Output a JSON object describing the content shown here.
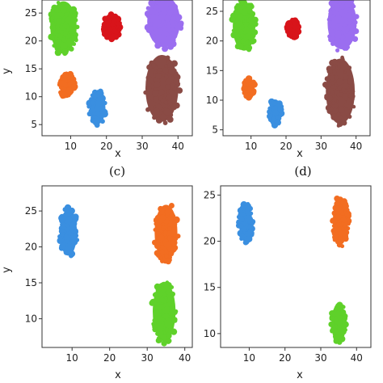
{
  "captions": [
    "(c)",
    "(d)"
  ],
  "colors": {
    "green": "#5fd12a",
    "red": "#d8141a",
    "purple": "#9b6ef0",
    "orange": "#f26d21",
    "blue": "#3a8fe0",
    "brown": "#8a4b45"
  },
  "chart_data": [
    {
      "type": "scatter",
      "xlabel": "x",
      "ylabel": "y",
      "xlim": [
        2,
        44
      ],
      "ylim": [
        3,
        28.5
      ],
      "xticks": [
        "10",
        "20",
        "30",
        "40"
      ],
      "yticks": [
        "5",
        "10",
        "15",
        "20",
        "25"
      ],
      "series": [
        {
          "color": "#5fd12a",
          "cx": 8,
          "cy": 22.5,
          "rx": 4,
          "ry": 5
        },
        {
          "color": "#d8141a",
          "cx": 21.5,
          "cy": 22.5,
          "rx": 2.5,
          "ry": 2.3
        },
        {
          "color": "#9b6ef0",
          "cx": 36,
          "cy": 23.5,
          "rx": 5,
          "ry": 5
        },
        {
          "color": "#f26d21",
          "cx": 9,
          "cy": 12,
          "rx": 2.2,
          "ry": 2.3
        },
        {
          "color": "#3a8fe0",
          "cx": 17.5,
          "cy": 8,
          "rx": 2.4,
          "ry": 3.2
        },
        {
          "color": "#8a4b45",
          "cx": 35.5,
          "cy": 11.5,
          "rx": 5,
          "ry": 6.5
        }
      ]
    },
    {
      "type": "scatter",
      "xlabel": "x",
      "ylabel": "",
      "xlim": [
        2,
        44
      ],
      "ylim": [
        4,
        28
      ],
      "xticks": [
        "10",
        "20",
        "30",
        "40"
      ],
      "yticks": [
        "5",
        "10",
        "15",
        "20",
        "25"
      ],
      "series": [
        {
          "color": "#5fd12a",
          "cx": 8,
          "cy": 22.5,
          "rx": 3.5,
          "ry": 4.5
        },
        {
          "color": "#d8141a",
          "cx": 22,
          "cy": 22,
          "rx": 1.7,
          "ry": 1.6
        },
        {
          "color": "#9b6ef0",
          "cx": 36,
          "cy": 23,
          "rx": 4.5,
          "ry": 4.8
        },
        {
          "color": "#f26d21",
          "cx": 9.5,
          "cy": 12,
          "rx": 1.6,
          "ry": 1.8
        },
        {
          "color": "#3a8fe0",
          "cx": 17,
          "cy": 8,
          "rx": 1.8,
          "ry": 2.3
        },
        {
          "color": "#8a4b45",
          "cx": 35.5,
          "cy": 11.5,
          "rx": 4.5,
          "ry": 6
        }
      ]
    },
    {
      "type": "scatter",
      "xlabel": "x",
      "ylabel": "y",
      "xlim": [
        2,
        42
      ],
      "ylim": [
        6,
        28.5
      ],
      "xticks": [
        "10",
        "20",
        "30",
        "40"
      ],
      "yticks": [
        "10",
        "15",
        "20",
        "25"
      ],
      "series": [
        {
          "color": "#3a8fe0",
          "cx": 9,
          "cy": 22,
          "rx": 2.5,
          "ry": 3.5
        },
        {
          "color": "#f26d21",
          "cx": 35,
          "cy": 22,
          "rx": 3.3,
          "ry": 4.2
        },
        {
          "color": "#5fd12a",
          "cx": 34.5,
          "cy": 11,
          "rx": 3.3,
          "ry": 4.5
        }
      ]
    },
    {
      "type": "scatter",
      "xlabel": "x",
      "ylabel": "",
      "xlim": [
        2,
        44
      ],
      "ylim": [
        8.5,
        26
      ],
      "xticks": [
        "10",
        "20",
        "30",
        "40"
      ],
      "yticks": [
        "10",
        "15",
        "20",
        "25"
      ],
      "series": [
        {
          "color": "#3a8fe0",
          "cx": 9,
          "cy": 22,
          "rx": 2,
          "ry": 2.2
        },
        {
          "color": "#f26d21",
          "cx": 35.5,
          "cy": 22.2,
          "rx": 2.3,
          "ry": 2.8
        },
        {
          "color": "#5fd12a",
          "cx": 35,
          "cy": 11.2,
          "rx": 2.1,
          "ry": 2.3
        }
      ]
    }
  ]
}
